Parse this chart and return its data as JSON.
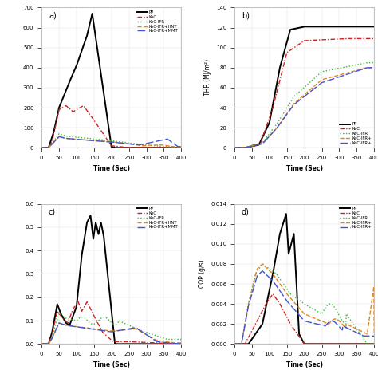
{
  "fig_bg": "#ffffff",
  "panel_bg": "#ffffff",
  "colors": {
    "PP": "#000000",
    "KeC": "#cc2222",
    "KeC_IFR": "#33bb33",
    "KeC_IFR_HNT": "#dd8822",
    "KeC_IFR_MMT": "#4455cc"
  },
  "legend_labels_a": [
    "PP",
    "KeC",
    "KeC-IFR",
    "KeC-IFR+HNT",
    "KeC-IFR+MMT"
  ],
  "legend_labels_b": [
    "PP",
    "KeC",
    "KeC-IFR",
    "KeC-IFR+",
    "KeC-IFR+"
  ],
  "legend_labels_c": [
    "PP",
    "KeC",
    "KeC-IFR",
    "KeC-IFR+HNT",
    "KeC-IFR+MMT"
  ],
  "legend_labels_d": [
    "PP",
    "KeC",
    "KeC-IFR",
    "KeC-IFR+",
    "KeC-IFR+"
  ],
  "xlabel": "Time (Sec)",
  "ylabel_a": "",
  "ylabel_b": "THR (MJ/m²)",
  "ylabel_c": "",
  "ylabel_d": "COP (g/s)",
  "xlim": [
    0,
    400
  ],
  "ylim_a": [
    0,
    700
  ],
  "ylim_b": [
    0,
    140
  ],
  "ylim_c": [
    0,
    0.6
  ],
  "ylim_d": [
    0,
    0.014
  ],
  "xticks": [
    0,
    50,
    100,
    150,
    200,
    250,
    300,
    350,
    400
  ],
  "yticks_b": [
    0,
    20,
    40,
    60,
    80,
    100,
    120,
    140
  ],
  "yticks_d": [
    0.0,
    0.002,
    0.004,
    0.006,
    0.008,
    0.01,
    0.012,
    0.014
  ]
}
